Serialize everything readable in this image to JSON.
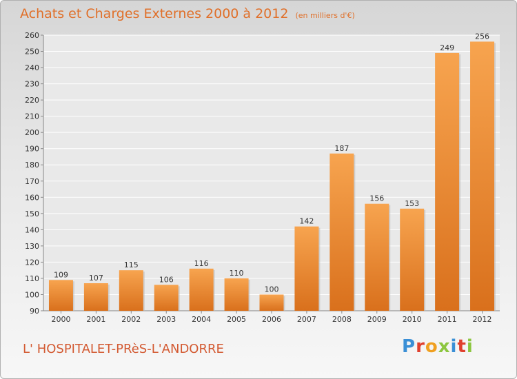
{
  "title": "Achats et Charges Externes 2000 à 2012",
  "subtitle": "(en milliers d'€)",
  "city": "L' HOSPITALET-PRèS-L'ANDORRE",
  "logo": {
    "text": "Proxiti",
    "letters": [
      "P",
      "r",
      "o",
      "x",
      "i",
      "t",
      "i"
    ],
    "colors": [
      "#3a8fd6",
      "#e0402e",
      "#f0a020",
      "#8cc63f",
      "#3a8fd6",
      "#e0402e",
      "#8cc63f"
    ]
  },
  "colors": {
    "bar_top": "#f7a44f",
    "bar_bottom": "#d9701c",
    "title": "#e0702a",
    "city": "#d35a32"
  },
  "chart_data": {
    "type": "bar",
    "categories": [
      "2000",
      "2001",
      "2002",
      "2003",
      "2004",
      "2005",
      "2006",
      "2007",
      "2008",
      "2009",
      "2010",
      "2011",
      "2012"
    ],
    "values": [
      109,
      107,
      115,
      106,
      116,
      110,
      100,
      142,
      187,
      156,
      153,
      249,
      256
    ],
    "ylim": [
      90,
      260
    ],
    "yticks": [
      90,
      100,
      110,
      120,
      130,
      140,
      150,
      160,
      170,
      180,
      190,
      200,
      210,
      220,
      230,
      240,
      250,
      260
    ],
    "grid": true
  }
}
